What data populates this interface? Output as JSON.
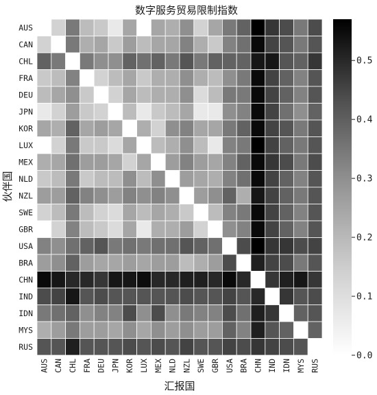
{
  "chart_data": {
    "type": "heatmap",
    "title": "数字服务贸易限制指数",
    "xlabel": "汇报国",
    "ylabel": "伙伴国",
    "x_categories": [
      "AUS",
      "CAN",
      "CHL",
      "FRA",
      "DEU",
      "JPN",
      "KOR",
      "LUX",
      "MEX",
      "NLD",
      "NZL",
      "SWE",
      "GBR",
      "USA",
      "BRA",
      "CHN",
      "IND",
      "IDN",
      "MYS",
      "RUS"
    ],
    "y_categories": [
      "AUS",
      "CAN",
      "CHL",
      "FRA",
      "DEU",
      "JPN",
      "KOR",
      "LUX",
      "MEX",
      "NLD",
      "NZL",
      "SWE",
      "GBR",
      "USA",
      "BRA",
      "CHN",
      "IND",
      "IDN",
      "MYS",
      "RUS"
    ],
    "values": [
      [
        null,
        0.1,
        0.3,
        0.15,
        0.12,
        0.05,
        0.2,
        0.0,
        0.2,
        0.18,
        0.25,
        0.1,
        0.2,
        0.3,
        0.35,
        0.58,
        0.45,
        0.4,
        0.3,
        0.4
      ],
      [
        0.1,
        null,
        0.3,
        0.18,
        0.2,
        0.12,
        0.22,
        0.15,
        0.2,
        0.2,
        0.28,
        0.18,
        0.12,
        0.28,
        0.32,
        0.55,
        0.42,
        0.38,
        0.3,
        0.38
      ],
      [
        0.35,
        0.3,
        null,
        0.3,
        0.25,
        0.25,
        0.35,
        0.32,
        0.35,
        0.3,
        0.38,
        0.3,
        0.35,
        0.35,
        0.35,
        0.52,
        0.52,
        0.38,
        0.35,
        0.45
      ],
      [
        0.12,
        0.15,
        0.28,
        null,
        0.1,
        0.15,
        0.2,
        0.12,
        0.18,
        0.18,
        0.25,
        0.18,
        0.15,
        0.25,
        0.3,
        0.55,
        0.42,
        0.35,
        0.28,
        0.38
      ],
      [
        0.15,
        0.2,
        0.25,
        0.12,
        null,
        0.1,
        0.2,
        0.15,
        0.18,
        0.18,
        0.25,
        0.08,
        0.15,
        0.3,
        0.3,
        0.55,
        0.42,
        0.35,
        0.28,
        0.38
      ],
      [
        0.05,
        0.1,
        0.22,
        0.12,
        0.1,
        null,
        0.15,
        0.05,
        0.12,
        0.15,
        0.2,
        0.05,
        0.05,
        0.25,
        0.28,
        0.55,
        0.42,
        0.32,
        0.25,
        0.35
      ],
      [
        0.2,
        0.18,
        0.35,
        0.2,
        0.22,
        0.2,
        null,
        0.18,
        0.1,
        0.25,
        0.28,
        0.2,
        0.2,
        0.3,
        0.35,
        0.55,
        0.42,
        0.38,
        0.3,
        0.38
      ],
      [
        0.0,
        0.1,
        0.3,
        0.12,
        0.12,
        0.08,
        0.2,
        null,
        0.15,
        0.18,
        0.25,
        0.15,
        0.05,
        0.28,
        0.3,
        0.58,
        0.42,
        0.35,
        0.3,
        0.38
      ],
      [
        0.18,
        0.2,
        0.32,
        0.22,
        0.22,
        0.2,
        0.1,
        0.2,
        null,
        0.22,
        0.28,
        0.22,
        0.2,
        0.28,
        0.35,
        0.55,
        0.45,
        0.4,
        0.3,
        0.4
      ],
      [
        0.12,
        0.15,
        0.3,
        0.12,
        0.15,
        0.15,
        0.25,
        0.15,
        0.25,
        null,
        0.22,
        0.2,
        0.18,
        0.28,
        0.32,
        0.55,
        0.42,
        0.35,
        0.28,
        0.38
      ],
      [
        0.22,
        0.22,
        0.35,
        0.28,
        0.25,
        0.22,
        0.28,
        0.25,
        0.28,
        0.25,
        null,
        0.22,
        0.25,
        0.35,
        0.18,
        0.52,
        0.42,
        0.35,
        0.3,
        0.38
      ],
      [
        0.1,
        0.15,
        0.3,
        0.15,
        0.1,
        0.08,
        0.2,
        0.15,
        0.2,
        0.18,
        0.12,
        null,
        0.15,
        0.28,
        0.3,
        0.55,
        0.42,
        0.35,
        0.28,
        0.38
      ],
      [
        0.0,
        0.1,
        0.28,
        0.15,
        0.12,
        0.08,
        0.2,
        0.05,
        0.18,
        0.18,
        0.22,
        0.1,
        null,
        0.25,
        0.28,
        0.55,
        0.42,
        0.35,
        0.28,
        0.38
      ],
      [
        0.28,
        0.25,
        0.32,
        0.35,
        0.38,
        0.3,
        0.32,
        0.3,
        0.32,
        0.32,
        0.38,
        0.35,
        0.32,
        null,
        0.4,
        0.57,
        0.45,
        0.45,
        0.4,
        0.42
      ],
      [
        0.22,
        0.25,
        0.35,
        0.22,
        0.2,
        0.2,
        0.22,
        0.2,
        0.22,
        0.22,
        0.15,
        0.18,
        0.22,
        0.4,
        null,
        0.5,
        0.42,
        0.4,
        0.3,
        0.38
      ],
      [
        0.55,
        0.52,
        0.48,
        0.48,
        0.45,
        0.52,
        0.52,
        0.54,
        0.48,
        0.48,
        0.5,
        0.5,
        0.48,
        0.55,
        0.48,
        null,
        0.45,
        0.5,
        0.52,
        0.45
      ],
      [
        0.4,
        0.42,
        0.52,
        0.38,
        0.4,
        0.38,
        0.38,
        0.38,
        0.38,
        0.38,
        0.4,
        0.38,
        0.38,
        0.42,
        0.38,
        0.48,
        null,
        0.45,
        0.38,
        0.4
      ],
      [
        0.3,
        0.32,
        0.35,
        0.25,
        0.28,
        0.28,
        0.4,
        0.25,
        0.4,
        0.25,
        0.3,
        0.28,
        0.28,
        0.4,
        0.32,
        0.5,
        0.45,
        null,
        0.35,
        0.38
      ],
      [
        0.18,
        0.22,
        0.3,
        0.22,
        0.22,
        0.2,
        0.25,
        0.2,
        0.25,
        0.22,
        0.25,
        0.22,
        0.22,
        0.35,
        0.28,
        0.5,
        0.38,
        0.35,
        null,
        0.35
      ],
      [
        0.38,
        0.38,
        0.5,
        0.38,
        0.38,
        0.38,
        0.4,
        0.38,
        0.4,
        0.38,
        0.42,
        0.38,
        0.38,
        0.42,
        0.4,
        0.45,
        0.42,
        0.4,
        0.38,
        null
      ]
    ],
    "colorbar": {
      "min": 0.0,
      "max": 0.57,
      "ticks": [
        "0.0",
        "0.1",
        "0.2",
        "0.3",
        "0.4",
        "0.5"
      ],
      "colormap": "greys"
    },
    "grid": true,
    "cell_line_color": "#ffffff"
  }
}
